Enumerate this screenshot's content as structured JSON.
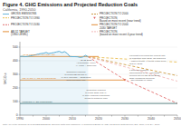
{
  "chart_data": {
    "type": "line",
    "title": "Figure 4. GHG Emissions and Projected Reduction Goals",
    "subtitle": "California, 1990-2050",
    "ylabel": "MtCO₂e",
    "series": [
      {
        "name": "GROSS EMISSIONS",
        "type": "area",
        "color": "#5bafd6",
        "line_style": "solid",
        "x": [
          1990,
          1991,
          1992,
          1993,
          1994,
          1995,
          1996,
          1997,
          1998,
          1999,
          2000,
          2001,
          2002,
          2003,
          2004,
          2005,
          2006,
          2007,
          2008,
          2009,
          2010,
          2011,
          2012,
          2013,
          2014,
          2015,
          2016
        ],
        "values": [
          431,
          433,
          430,
          432,
          436,
          440,
          444,
          449,
          453,
          455,
          461,
          453,
          457,
          460,
          465,
          469,
          460,
          467,
          455,
          432,
          430,
          430,
          429,
          424,
          428,
          440,
          429
        ]
      },
      {
        "name": "PROJECTION TO 1990",
        "color": "#e8b840",
        "line_style": "dashed",
        "x": [
          2016,
          2050
        ],
        "values": [
          429,
          390
        ]
      },
      {
        "name": "PROJECTION TO 2030",
        "color": "#e06060",
        "line_style": "dashed",
        "x": [
          2016,
          2030,
          2050
        ],
        "values": [
          429,
          260,
          86
        ]
      },
      {
        "name": "AB 32 TARGET\n(1990 LEVEL)",
        "color": "#e08020",
        "line_style": "solid",
        "x": [
          1990,
          2020
        ],
        "values": [
          431,
          431
        ]
      },
      {
        "name": "PROJECTION TO 2000",
        "color": "#c89030",
        "line_style": "dashed",
        "x": [
          2016,
          2050
        ],
        "values": [
          429,
          290
        ]
      },
      {
        "name": "PROJECTION\nBased on most recent (near trend)",
        "type": "scatter",
        "color": "#e06060",
        "marker": "triangle-down",
        "x": [
          2030
        ],
        "values": [
          258
        ]
      },
      {
        "name": "PROJECTION TO 2000\n2030 TARGET",
        "color": "#e08020",
        "line_style": "solid",
        "x": [
          1990,
          2030
        ],
        "values": [
          258,
          258
        ]
      },
      {
        "name": "PROJECTION\n(based on most recent 4-year trend)",
        "color": "#f0b0b0",
        "line_style": "dashed",
        "x": [
          2016,
          2050
        ],
        "values": [
          429,
          250
        ]
      },
      {
        "color": "#336666",
        "line_style": "solid",
        "x": [
          1990,
          2050
        ],
        "values": [
          86,
          86
        ]
      }
    ],
    "annotations": [
      "AB 32 GENERAL AIM FOR YOU",
      "MEAN GOAL: SB 32 PROTOCOL",
      "PROPOSAL: EN PROTOCOL",
      "AB 32 2023:\nAs Summary (16%)\n(# Years + achieved)",
      "Reduction required\nto reach SB 32 GOAL:\n% 16% increase + abatement\nfrom previous year",
      "Forecast of keeping the current rate\nof reduction from 2030 (as achieved\n+ added points). It would reach 1000\ngoal by 2075.",
      "If 2030 successfully\nimplemented by CA (including\npolicies not on SB 32 as 2030),\n2050 emissions would be\n~150 MtCO2e by 2050.",
      "Reduction required\nto reach 2050 GOAL:\n% 80% reduced reductions\nneeds to between plan",
      "Note: 1% is the minimum GHG EMISSIONS/2002. Sources: Data from California Air Resources Board (CARB); Cal Energy Data Service; Bay, 2017; U.S. EIA, 2017."
    ],
    "xlim": [
      1990,
      2050
    ],
    "ylim": [
      0,
      540
    ],
    "yticks": [
      0,
      100,
      200,
      300,
      400,
      500
    ],
    "xticks": [
      1990,
      {
        "value": 1995,
        "label": null
      },
      2000,
      {
        "value": 2005,
        "label": null
      },
      2010,
      {
        "value": 2015,
        "label": null
      },
      2020,
      {
        "value": 2025,
        "label": null
      },
      2030,
      {
        "value": 2035,
        "label": null
      },
      2040,
      {
        "value": 2045,
        "label": null
      },
      2050
    ],
    "grid": "y",
    "legend": "top"
  }
}
